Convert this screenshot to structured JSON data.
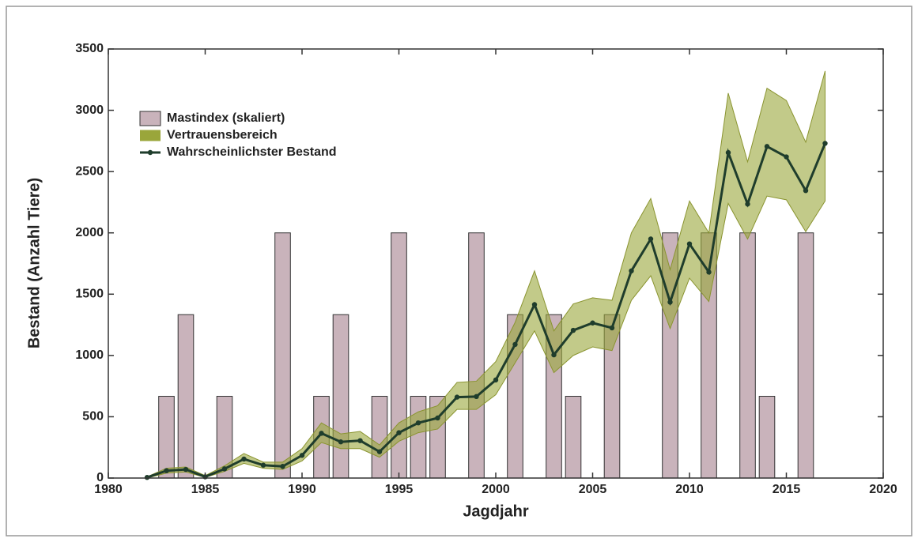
{
  "chart_data": {
    "type": "combo",
    "x_label": "Jagdjahr",
    "y_label": "Bestand (Anzahl Tiere)",
    "xlim": [
      1980,
      2020
    ],
    "xticks": [
      1980,
      1985,
      1990,
      1995,
      2000,
      2005,
      2010,
      2015,
      2020
    ],
    "ylim": [
      0,
      3500
    ],
    "yticks": [
      0,
      500,
      1000,
      1500,
      2000,
      2500,
      3000,
      3500
    ],
    "grid": false,
    "legend": "upper-left",
    "x": [
      1982,
      1983,
      1984,
      1985,
      1986,
      1987,
      1988,
      1989,
      1990,
      1991,
      1992,
      1993,
      1994,
      1995,
      1996,
      1997,
      1998,
      1999,
      2000,
      2001,
      2002,
      2003,
      2004,
      2005,
      2006,
      2007,
      2008,
      2009,
      2010,
      2011,
      2012,
      2013,
      2014,
      2015,
      2016,
      2017
    ],
    "series": [
      {
        "name": "Mastindex (skaliert)",
        "type": "bar",
        "color": "#c9b3bb",
        "x": [
          1983,
          1984,
          1986,
          1989,
          1991,
          1992,
          1994,
          1995,
          1996,
          1997,
          1999,
          2001,
          2003,
          2004,
          2006,
          2009,
          2011,
          2013,
          2014,
          2016
        ],
        "values": [
          667,
          1333,
          667,
          2000,
          667,
          1333,
          667,
          2000,
          667,
          667,
          2000,
          1333,
          1333,
          667,
          1333,
          2000,
          2000,
          2000,
          667,
          2000
        ]
      },
      {
        "name": "Vertrauensbereich",
        "type": "band",
        "color": "#9aa63a",
        "lower": [
          0,
          40,
          50,
          5,
          55,
          120,
          80,
          70,
          140,
          290,
          240,
          240,
          170,
          300,
          370,
          400,
          560,
          560,
          680,
          940,
          1200,
          860,
          1000,
          1070,
          1040,
          1450,
          1650,
          1220,
          1630,
          1440,
          2240,
          1950,
          2300,
          2270,
          2010,
          2260
        ],
        "upper": [
          10,
          80,
          90,
          20,
          100,
          200,
          130,
          130,
          240,
          450,
          360,
          380,
          270,
          450,
          540,
          590,
          780,
          790,
          950,
          1270,
          1690,
          1200,
          1420,
          1470,
          1450,
          2000,
          2280,
          1700,
          2260,
          2000,
          3140,
          2580,
          3180,
          3080,
          2740,
          3320
        ]
      },
      {
        "name": "Wahrscheinlichster Bestand",
        "type": "line",
        "color": "#1f3d2c",
        "values": [
          5,
          60,
          70,
          10,
          75,
          155,
          105,
          95,
          185,
          365,
          295,
          305,
          215,
          370,
          450,
          490,
          660,
          665,
          800,
          1090,
          1415,
          1005,
          1205,
          1265,
          1225,
          1690,
          1950,
          1435,
          1910,
          1680,
          2655,
          2235,
          2705,
          2620,
          2345,
          2730
        ]
      }
    ]
  }
}
